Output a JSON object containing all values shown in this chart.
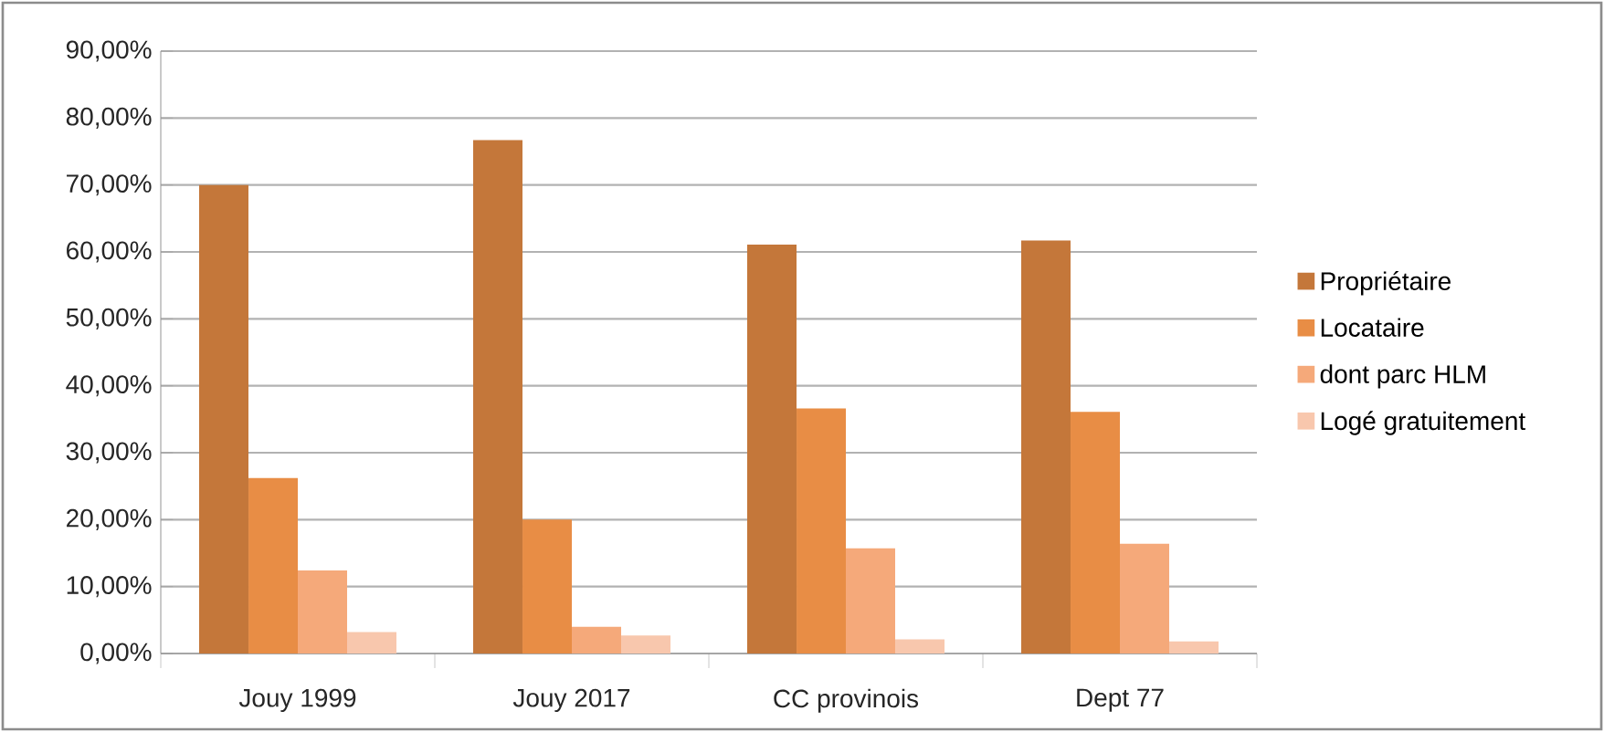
{
  "chart_data": {
    "type": "bar",
    "categories": [
      "Jouy 1999",
      "Jouy 2017",
      "CC provinois",
      "Dept 77"
    ],
    "series": [
      {
        "name": "Propriétaire",
        "color": "#c4773a",
        "values": [
          70.0,
          76.7,
          61.1,
          61.7
        ]
      },
      {
        "name": "Locataire",
        "color": "#e88d45",
        "values": [
          26.2,
          20.0,
          36.6,
          36.1
        ]
      },
      {
        "name": "dont parc HLM",
        "color": "#f5a97a",
        "values": [
          12.4,
          4.0,
          15.7,
          16.4
        ]
      },
      {
        "name": "Logé gratuitement",
        "color": "#f8c7ad",
        "values": [
          3.2,
          2.7,
          2.1,
          1.8
        ]
      }
    ],
    "ylim": [
      0,
      90
    ],
    "yticks": [
      {
        "value": 0,
        "label": "0,00%"
      },
      {
        "value": 10,
        "label": "10,00%"
      },
      {
        "value": 20,
        "label": "20,00%"
      },
      {
        "value": 30,
        "label": "30,00%"
      },
      {
        "value": 40,
        "label": "40,00%"
      },
      {
        "value": 50,
        "label": "50,00%"
      },
      {
        "value": 60,
        "label": "60,00%"
      },
      {
        "value": 70,
        "label": "70,00%"
      },
      {
        "value": 80,
        "label": "80,00%"
      },
      {
        "value": 90,
        "label": "90,00%"
      }
    ],
    "grid": "y",
    "legend": "right"
  }
}
